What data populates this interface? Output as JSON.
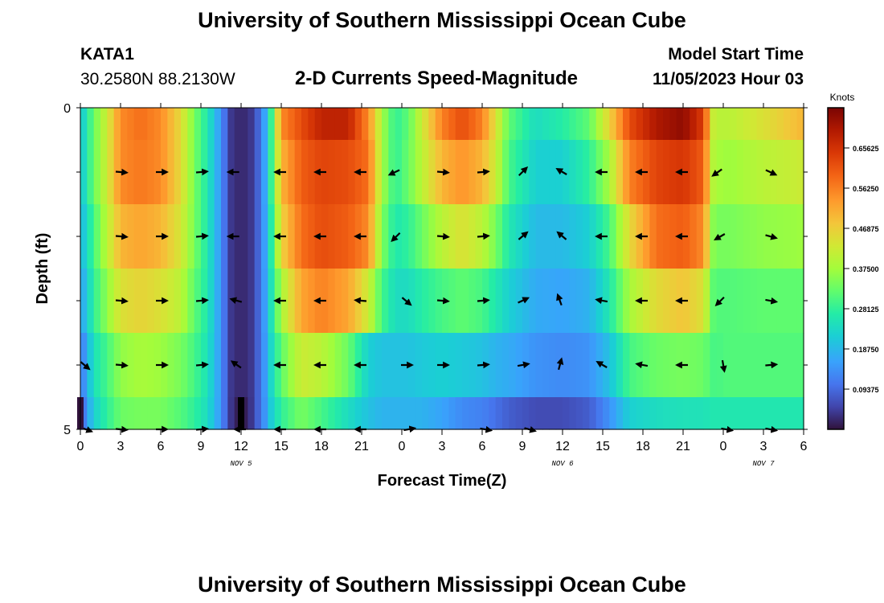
{
  "header": {
    "title": "University of Southern Mississippi Ocean Cube",
    "station": "KATA1",
    "coords": "30.2580N  88.2130W",
    "plot_title": "2-D Currents Speed-Magnitude",
    "model_label": "Model Start Time",
    "model_time": "11/05/2023 Hour 03",
    "footer_title": "University of Southern Mississippi Ocean Cube"
  },
  "chart_data": {
    "type": "heatmap",
    "title": "2-D Currents Speed-Magnitude",
    "xlabel": "Forecast Time(Z)",
    "ylabel": "Depth (ft)",
    "x_range_hours": [
      0,
      54
    ],
    "y_range": [
      0,
      5
    ],
    "y_ticks": [
      "0",
      "5"
    ],
    "x_ticks": [
      {
        "hour": 0,
        "label": "0"
      },
      {
        "hour": 3,
        "label": "3"
      },
      {
        "hour": 6,
        "label": "6"
      },
      {
        "hour": 9,
        "label": "9"
      },
      {
        "hour": 12,
        "label": "12"
      },
      {
        "hour": 15,
        "label": "15"
      },
      {
        "hour": 18,
        "label": "18"
      },
      {
        "hour": 21,
        "label": "21"
      },
      {
        "hour": 24,
        "label": "0"
      },
      {
        "hour": 27,
        "label": "3"
      },
      {
        "hour": 30,
        "label": "6"
      },
      {
        "hour": 33,
        "label": "9"
      },
      {
        "hour": 36,
        "label": "12"
      },
      {
        "hour": 39,
        "label": "15"
      },
      {
        "hour": 42,
        "label": "18"
      },
      {
        "hour": 45,
        "label": "21"
      },
      {
        "hour": 48,
        "label": "0"
      },
      {
        "hour": 51,
        "label": "3"
      },
      {
        "hour": 54,
        "label": "6"
      }
    ],
    "day_labels": [
      {
        "hour": 12,
        "label": "NOV 5"
      },
      {
        "hour": 36,
        "label": "NOV 6"
      },
      {
        "hour": 51,
        "label": "NOV 7"
      }
    ],
    "colorbar": {
      "label": "Knots",
      "min": 0.0,
      "max": 0.75,
      "tick_labels": [
        "0.65625",
        "0.56250",
        "0.46875",
        "0.37500",
        "0.28125",
        "0.18750",
        "0.09375"
      ],
      "tick_values": [
        0.65625,
        0.5625,
        0.46875,
        0.375,
        0.28125,
        0.1875,
        0.09375
      ]
    },
    "speed_profile": [
      {
        "hour": 0,
        "v": [
          0.2,
          0.2,
          0.18,
          0.15,
          0.1,
          0.08
        ]
      },
      {
        "hour": 1,
        "v": [
          0.33,
          0.33,
          0.3,
          0.28,
          0.25,
          0.22
        ]
      },
      {
        "hour": 2,
        "v": [
          0.42,
          0.42,
          0.4,
          0.36,
          0.3,
          0.28
        ]
      },
      {
        "hour": 3,
        "v": [
          0.55,
          0.55,
          0.5,
          0.44,
          0.36,
          0.33
        ]
      },
      {
        "hour": 4.5,
        "v": [
          0.58,
          0.57,
          0.52,
          0.46,
          0.38,
          0.34
        ]
      },
      {
        "hour": 6,
        "v": [
          0.55,
          0.55,
          0.5,
          0.44,
          0.37,
          0.34
        ]
      },
      {
        "hour": 7.5,
        "v": [
          0.45,
          0.45,
          0.43,
          0.4,
          0.34,
          0.31
        ]
      },
      {
        "hour": 8.5,
        "v": [
          0.34,
          0.34,
          0.34,
          0.32,
          0.3,
          0.28
        ]
      },
      {
        "hour": 9.5,
        "v": [
          0.26,
          0.26,
          0.26,
          0.26,
          0.25,
          0.24
        ]
      },
      {
        "hour": 10.5,
        "v": [
          0.14,
          0.14,
          0.14,
          0.14,
          0.14,
          0.14
        ]
      },
      {
        "hour": 11.2,
        "v": [
          0.04,
          0.04,
          0.04,
          0.04,
          0.04,
          0.04
        ]
      },
      {
        "hour": 12,
        "v": [
          0.02,
          0.02,
          0.02,
          0.02,
          0.02,
          0.0
        ]
      },
      {
        "hour": 12.8,
        "v": [
          0.04,
          0.04,
          0.04,
          0.04,
          0.04,
          0.04
        ]
      },
      {
        "hour": 13.6,
        "v": [
          0.12,
          0.12,
          0.12,
          0.12,
          0.12,
          0.12
        ]
      },
      {
        "hour": 14.3,
        "v": [
          0.3,
          0.3,
          0.28,
          0.26,
          0.24,
          0.22
        ]
      },
      {
        "hour": 15,
        "v": [
          0.55,
          0.5,
          0.46,
          0.38,
          0.32,
          0.28
        ]
      },
      {
        "hour": 16.5,
        "v": [
          0.62,
          0.6,
          0.58,
          0.52,
          0.42,
          0.34
        ]
      },
      {
        "hour": 18,
        "v": [
          0.68,
          0.63,
          0.62,
          0.56,
          0.4,
          0.3
        ]
      },
      {
        "hour": 20,
        "v": [
          0.68,
          0.62,
          0.6,
          0.52,
          0.33,
          0.24
        ]
      },
      {
        "hour": 21.5,
        "v": [
          0.55,
          0.58,
          0.55,
          0.42,
          0.22,
          0.2
        ]
      },
      {
        "hour": 22.5,
        "v": [
          0.38,
          0.38,
          0.35,
          0.3,
          0.2,
          0.18
        ]
      },
      {
        "hour": 23.5,
        "v": [
          0.28,
          0.28,
          0.26,
          0.24,
          0.2,
          0.18
        ]
      },
      {
        "hour": 24.5,
        "v": [
          0.32,
          0.33,
          0.28,
          0.24,
          0.2,
          0.18
        ]
      },
      {
        "hour": 25.5,
        "v": [
          0.42,
          0.4,
          0.33,
          0.27,
          0.21,
          0.18
        ]
      },
      {
        "hour": 27,
        "v": [
          0.56,
          0.5,
          0.4,
          0.3,
          0.22,
          0.16
        ]
      },
      {
        "hour": 28.5,
        "v": [
          0.62,
          0.54,
          0.44,
          0.32,
          0.21,
          0.13
        ]
      },
      {
        "hour": 30,
        "v": [
          0.56,
          0.5,
          0.4,
          0.3,
          0.2,
          0.12
        ]
      },
      {
        "hour": 31,
        "v": [
          0.44,
          0.42,
          0.34,
          0.26,
          0.18,
          0.1
        ]
      },
      {
        "hour": 32,
        "v": [
          0.32,
          0.3,
          0.26,
          0.22,
          0.17,
          0.08
        ]
      },
      {
        "hour": 34,
        "v": [
          0.24,
          0.22,
          0.19,
          0.17,
          0.14,
          0.06
        ]
      },
      {
        "hour": 36,
        "v": [
          0.27,
          0.22,
          0.19,
          0.16,
          0.13,
          0.06
        ]
      },
      {
        "hour": 38,
        "v": [
          0.32,
          0.28,
          0.22,
          0.18,
          0.14,
          0.08
        ]
      },
      {
        "hour": 39.5,
        "v": [
          0.46,
          0.38,
          0.3,
          0.26,
          0.2,
          0.14
        ]
      },
      {
        "hour": 41,
        "v": [
          0.62,
          0.56,
          0.45,
          0.38,
          0.3,
          0.22
        ]
      },
      {
        "hour": 43,
        "v": [
          0.7,
          0.63,
          0.58,
          0.45,
          0.33,
          0.24
        ]
      },
      {
        "hour": 45,
        "v": [
          0.73,
          0.65,
          0.6,
          0.48,
          0.34,
          0.25
        ]
      },
      {
        "hour": 46.5,
        "v": [
          0.64,
          0.6,
          0.55,
          0.44,
          0.33,
          0.25
        ]
      },
      {
        "hour": 47.3,
        "v": [
          0.4,
          0.38,
          0.34,
          0.31,
          0.3,
          0.26
        ]
      },
      {
        "hour": 48.5,
        "v": [
          0.4,
          0.37,
          0.34,
          0.31,
          0.31,
          0.26
        ]
      },
      {
        "hour": 51,
        "v": [
          0.44,
          0.4,
          0.36,
          0.32,
          0.31,
          0.26
        ]
      },
      {
        "hour": 54,
        "v": [
          0.5,
          0.42,
          0.37,
          0.32,
          0.31,
          0.26
        ]
      }
    ],
    "vectors": [
      {
        "hour": 0.3,
        "depth": 4,
        "dir": -40
      },
      {
        "hour": 3,
        "depth": 1,
        "dir": -5
      },
      {
        "hour": 6,
        "depth": 1,
        "dir": 0
      },
      {
        "hour": 9,
        "depth": 1,
        "dir": 5
      },
      {
        "hour": 11.5,
        "depth": 1,
        "dir": 180
      },
      {
        "hour": 15,
        "depth": 1,
        "dir": 180
      },
      {
        "hour": 18,
        "depth": 1,
        "dir": 180
      },
      {
        "hour": 21,
        "depth": 1,
        "dir": 180
      },
      {
        "hour": 23.5,
        "depth": 1,
        "dir": 205
      },
      {
        "hour": 27,
        "depth": 1,
        "dir": -5
      },
      {
        "hour": 30,
        "depth": 1,
        "dir": 5
      },
      {
        "hour": 33,
        "depth": 1,
        "dir": 45
      },
      {
        "hour": 36,
        "depth": 1,
        "dir": 150
      },
      {
        "hour": 39,
        "depth": 1,
        "dir": 180
      },
      {
        "hour": 42,
        "depth": 1,
        "dir": 180
      },
      {
        "hour": 45,
        "depth": 1,
        "dir": 180
      },
      {
        "hour": 47.6,
        "depth": 1,
        "dir": 215
      },
      {
        "hour": 51.5,
        "depth": 1,
        "dir": -25
      },
      {
        "hour": 3,
        "depth": 2,
        "dir": -5
      },
      {
        "hour": 6,
        "depth": 2,
        "dir": 0
      },
      {
        "hour": 9,
        "depth": 2,
        "dir": 5
      },
      {
        "hour": 11.5,
        "depth": 2,
        "dir": 180
      },
      {
        "hour": 15,
        "depth": 2,
        "dir": 180
      },
      {
        "hour": 18,
        "depth": 2,
        "dir": 180
      },
      {
        "hour": 21,
        "depth": 2,
        "dir": 180
      },
      {
        "hour": 23.6,
        "depth": 2,
        "dir": 225
      },
      {
        "hour": 27,
        "depth": 2,
        "dir": -5
      },
      {
        "hour": 30,
        "depth": 2,
        "dir": 5
      },
      {
        "hour": 33,
        "depth": 2,
        "dir": 40
      },
      {
        "hour": 36,
        "depth": 2,
        "dir": 140
      },
      {
        "hour": 39,
        "depth": 2,
        "dir": 180
      },
      {
        "hour": 42,
        "depth": 2,
        "dir": 180
      },
      {
        "hour": 45,
        "depth": 2,
        "dir": 180
      },
      {
        "hour": 47.8,
        "depth": 2,
        "dir": 210
      },
      {
        "hour": 51.5,
        "depth": 2,
        "dir": -15
      },
      {
        "hour": 3,
        "depth": 3,
        "dir": -5
      },
      {
        "hour": 6,
        "depth": 3,
        "dir": 0
      },
      {
        "hour": 9,
        "depth": 3,
        "dir": 5
      },
      {
        "hour": 11.7,
        "depth": 3,
        "dir": 165
      },
      {
        "hour": 15,
        "depth": 3,
        "dir": 180
      },
      {
        "hour": 18,
        "depth": 3,
        "dir": 180
      },
      {
        "hour": 21,
        "depth": 3,
        "dir": 175
      },
      {
        "hour": 24.3,
        "depth": 3,
        "dir": -40
      },
      {
        "hour": 27,
        "depth": 3,
        "dir": -5
      },
      {
        "hour": 30,
        "depth": 3,
        "dir": 5
      },
      {
        "hour": 33,
        "depth": 3,
        "dir": 25
      },
      {
        "hour": 35.8,
        "depth": 3,
        "dir": 110
      },
      {
        "hour": 39,
        "depth": 3,
        "dir": 170
      },
      {
        "hour": 42,
        "depth": 3,
        "dir": 180
      },
      {
        "hour": 45,
        "depth": 3,
        "dir": 180
      },
      {
        "hour": 47.8,
        "depth": 3,
        "dir": 225
      },
      {
        "hour": 51.5,
        "depth": 3,
        "dir": -10
      },
      {
        "hour": 3,
        "depth": 4,
        "dir": -5
      },
      {
        "hour": 6,
        "depth": 4,
        "dir": 0
      },
      {
        "hour": 9,
        "depth": 4,
        "dir": 5
      },
      {
        "hour": 11.7,
        "depth": 4,
        "dir": 145
      },
      {
        "hour": 15,
        "depth": 4,
        "dir": 180
      },
      {
        "hour": 18,
        "depth": 4,
        "dir": 180
      },
      {
        "hour": 21,
        "depth": 4,
        "dir": 180
      },
      {
        "hour": 24.3,
        "depth": 4,
        "dir": 0
      },
      {
        "hour": 27,
        "depth": 4,
        "dir": 0
      },
      {
        "hour": 30,
        "depth": 4,
        "dir": 5
      },
      {
        "hour": 33,
        "depth": 4,
        "dir": 10
      },
      {
        "hour": 35.8,
        "depth": 4,
        "dir": 75
      },
      {
        "hour": 39,
        "depth": 4,
        "dir": 150
      },
      {
        "hour": 42,
        "depth": 4,
        "dir": 170
      },
      {
        "hour": 45,
        "depth": 4,
        "dir": 180
      },
      {
        "hour": 48,
        "depth": 4,
        "dir": -80
      },
      {
        "hour": 51.5,
        "depth": 4,
        "dir": 5
      },
      {
        "hour": 0.4,
        "depth": 5,
        "dir": -20
      },
      {
        "hour": 3,
        "depth": 5,
        "dir": -5
      },
      {
        "hour": 6,
        "depth": 5,
        "dir": 0
      },
      {
        "hour": 9,
        "depth": 5,
        "dir": 5
      },
      {
        "hour": 12,
        "depth": 5,
        "dir": 180
      },
      {
        "hour": 15,
        "depth": 5,
        "dir": 180
      },
      {
        "hour": 18,
        "depth": 5,
        "dir": 180
      },
      {
        "hour": 21,
        "depth": 5,
        "dir": 180
      },
      {
        "hour": 24.5,
        "depth": 5,
        "dir": 10
      },
      {
        "hour": 30.2,
        "depth": 5,
        "dir": -10
      },
      {
        "hour": 33.5,
        "depth": 5,
        "dir": -15
      },
      {
        "hour": 48.2,
        "depth": 5,
        "dir": -10
      },
      {
        "hour": 51.5,
        "depth": 5,
        "dir": -10
      }
    ]
  }
}
